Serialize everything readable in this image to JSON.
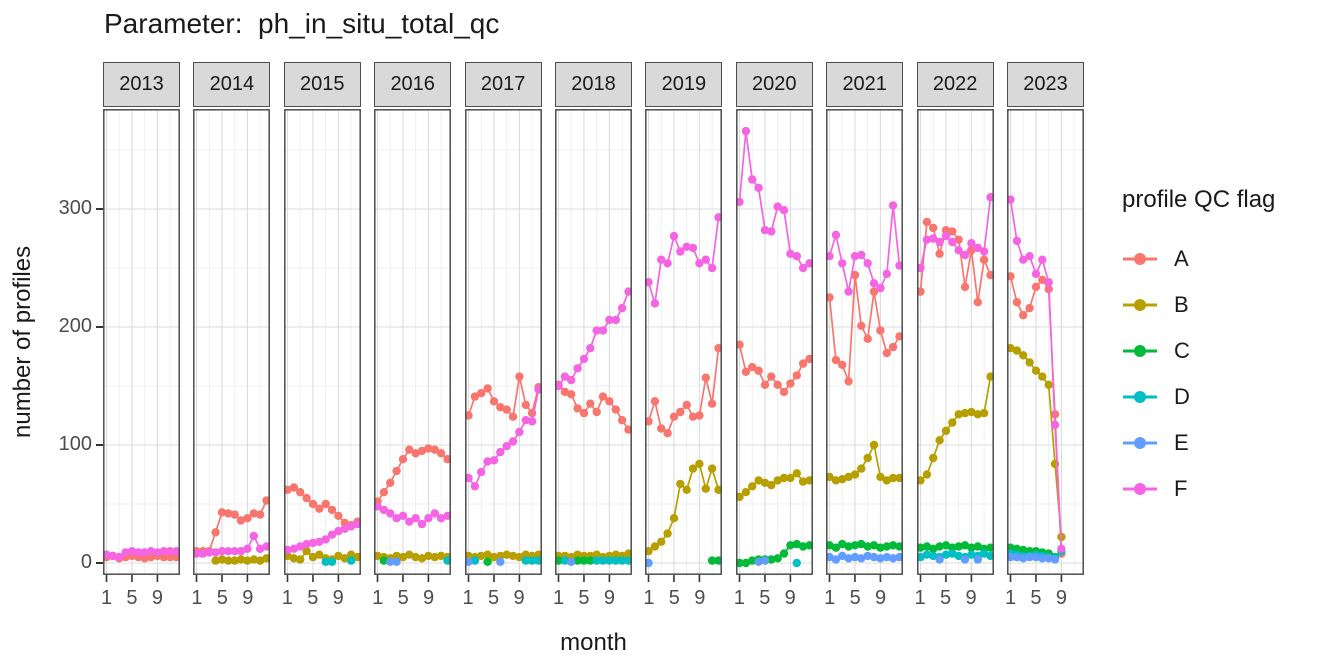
{
  "chart_data": {
    "type": "line",
    "title": "Parameter:  ph_in_situ_total_qc",
    "xlabel": "month",
    "ylabel": "number of profiles",
    "legend_title": "profile QC flag",
    "legend_position": "right",
    "grid": true,
    "x_ticks": [
      1,
      5,
      9
    ],
    "y_ticks": [
      0,
      100,
      200,
      300
    ],
    "y_minor_ticks": [
      50,
      150,
      250,
      350
    ],
    "x_minor_ticks": [
      3,
      7,
      11
    ],
    "ylim": [
      0,
      385
    ],
    "xlim": [
      1,
      12
    ],
    "x": [
      1,
      2,
      3,
      4,
      5,
      6,
      7,
      8,
      9,
      10,
      11,
      12
    ],
    "series_order": [
      "A",
      "B",
      "C",
      "D",
      "E",
      "F"
    ],
    "legend": [
      {
        "label": "A",
        "color": "#F8766D"
      },
      {
        "label": "B",
        "color": "#B79F00"
      },
      {
        "label": "C",
        "color": "#00BA38"
      },
      {
        "label": "D",
        "color": "#00BFC4"
      },
      {
        "label": "E",
        "color": "#619CFF"
      },
      {
        "label": "F",
        "color": "#F564E3"
      }
    ],
    "facets": [
      {
        "year": "2013",
        "series": {
          "A": [
            5,
            6,
            4,
            5,
            6,
            5,
            4,
            5,
            6,
            5,
            5,
            5
          ],
          "F": [
            7,
            6,
            5,
            9,
            10,
            9,
            9,
            10,
            9,
            10,
            10,
            10
          ]
        }
      },
      {
        "year": "2014",
        "series": {
          "A": [
            10,
            10,
            10,
            26,
            43,
            42,
            41,
            36,
            38,
            42,
            41,
            53
          ],
          "B": [
            null,
            null,
            null,
            2,
            3,
            2,
            2,
            3,
            2,
            3,
            2,
            4
          ],
          "F": [
            8,
            8,
            9,
            9,
            10,
            10,
            10,
            10,
            12,
            23,
            12,
            14
          ]
        }
      },
      {
        "year": "2015",
        "series": {
          "A": [
            62,
            64,
            60,
            55,
            50,
            46,
            50,
            45,
            40,
            34,
            32,
            35
          ],
          "B": [
            6,
            4,
            3,
            10,
            5,
            7,
            4,
            3,
            6,
            4,
            7,
            5
          ],
          "D": [
            null,
            null,
            null,
            null,
            null,
            null,
            1,
            1,
            null,
            null,
            2,
            null
          ],
          "F": [
            11,
            12,
            14,
            16,
            17,
            18,
            20,
            24,
            27,
            29,
            31,
            33
          ]
        }
      },
      {
        "year": "2016",
        "series": {
          "A": [
            52,
            60,
            68,
            78,
            88,
            96,
            93,
            95,
            97,
            96,
            93,
            88
          ],
          "B": [
            6,
            5,
            4,
            6,
            5,
            7,
            5,
            4,
            6,
            5,
            6,
            5
          ],
          "C": [
            null,
            2,
            null,
            null,
            null,
            null,
            null,
            null,
            null,
            null,
            null,
            null
          ],
          "D": [
            null,
            null,
            null,
            null,
            null,
            null,
            null,
            null,
            null,
            null,
            null,
            2
          ],
          "E": [
            null,
            null,
            1,
            1,
            null,
            null,
            null,
            null,
            null,
            null,
            null,
            null
          ],
          "F": [
            48,
            45,
            42,
            38,
            40,
            35,
            38,
            33,
            38,
            42,
            38,
            40
          ]
        }
      },
      {
        "year": "2017",
        "series": {
          "A": [
            125,
            141,
            144,
            148,
            137,
            132,
            130,
            124,
            158,
            134,
            127,
            149
          ],
          "B": [
            6,
            5,
            6,
            7,
            5,
            6,
            7,
            6,
            5,
            7,
            6,
            7
          ],
          "C": [
            null,
            null,
            null,
            1,
            null,
            null,
            null,
            null,
            null,
            null,
            null,
            null
          ],
          "D": [
            null,
            2,
            null,
            null,
            null,
            null,
            null,
            null,
            null,
            2,
            2,
            2
          ],
          "E": [
            1,
            null,
            null,
            null,
            null,
            1,
            null,
            null,
            null,
            null,
            null,
            null
          ],
          "F": [
            72,
            65,
            77,
            86,
            87,
            94,
            99,
            103,
            111,
            121,
            120,
            147
          ]
        }
      },
      {
        "year": "2018",
        "series": {
          "A": [
            151,
            145,
            143,
            131,
            127,
            135,
            128,
            141,
            137,
            130,
            121,
            113
          ],
          "B": [
            6,
            6,
            5,
            7,
            6,
            6,
            7,
            5,
            6,
            7,
            6,
            8
          ],
          "C": [
            2,
            null,
            null,
            2,
            2,
            2,
            null,
            null,
            null,
            null,
            null,
            null
          ],
          "D": [
            null,
            2,
            null,
            null,
            null,
            null,
            2,
            2,
            2,
            2,
            2,
            2
          ],
          "E": [
            null,
            null,
            1,
            null,
            null,
            null,
            null,
            null,
            null,
            null,
            null,
            null
          ],
          "F": [
            150,
            158,
            155,
            165,
            173,
            182,
            197,
            197,
            206,
            206,
            216,
            230
          ]
        }
      },
      {
        "year": "2019",
        "series": {
          "A": [
            120,
            137,
            114,
            110,
            124,
            128,
            134,
            124,
            125,
            157,
            135,
            182
          ],
          "B": [
            10,
            14,
            18,
            25,
            38,
            67,
            62,
            80,
            84,
            63,
            80,
            62
          ],
          "C": [
            null,
            null,
            null,
            null,
            null,
            null,
            null,
            null,
            null,
            null,
            2,
            2
          ],
          "E": [
            0,
            null,
            null,
            null,
            null,
            null,
            null,
            null,
            null,
            null,
            null,
            null
          ],
          "F": [
            238,
            220,
            257,
            254,
            277,
            264,
            268,
            267,
            254,
            257,
            250,
            293
          ]
        }
      },
      {
        "year": "2020",
        "series": {
          "A": [
            185,
            162,
            166,
            163,
            151,
            158,
            151,
            145,
            152,
            159,
            169,
            173
          ],
          "B": [
            56,
            60,
            65,
            70,
            68,
            66,
            70,
            72,
            72,
            76,
            69,
            70
          ],
          "C": [
            0,
            0,
            2,
            3,
            3,
            3,
            4,
            8,
            15,
            16,
            14,
            15
          ],
          "D": [
            null,
            null,
            null,
            null,
            null,
            null,
            null,
            null,
            null,
            0,
            null,
            null
          ],
          "E": [
            null,
            null,
            null,
            1,
            2,
            null,
            null,
            null,
            null,
            null,
            null,
            null
          ],
          "F": [
            306,
            366,
            325,
            318,
            282,
            281,
            302,
            299,
            262,
            260,
            250,
            254
          ]
        }
      },
      {
        "year": "2021",
        "series": {
          "A": [
            225,
            172,
            168,
            154,
            244,
            201,
            190,
            230,
            197,
            178,
            183,
            192
          ],
          "B": [
            73,
            70,
            71,
            73,
            75,
            80,
            89,
            100,
            73,
            70,
            72,
            72
          ],
          "C": [
            15,
            13,
            16,
            14,
            15,
            16,
            14,
            15,
            13,
            14,
            15,
            14
          ],
          "E": [
            5,
            3,
            6,
            4,
            5,
            4,
            6,
            5,
            4,
            5,
            4,
            5
          ],
          "F": [
            260,
            278,
            254,
            230,
            260,
            261,
            254,
            237,
            233,
            245,
            303,
            252
          ]
        }
      },
      {
        "year": "2022",
        "series": {
          "A": [
            230,
            289,
            284,
            262,
            282,
            281,
            274,
            234,
            265,
            221,
            257,
            244
          ],
          "B": [
            70,
            75,
            89,
            104,
            112,
            119,
            126,
            127,
            128,
            126,
            127,
            158
          ],
          "C": [
            13,
            14,
            12,
            14,
            15,
            13,
            14,
            15,
            13,
            14,
            12,
            13
          ],
          "D": [
            5,
            7,
            6,
            5,
            7,
            8,
            6,
            5,
            7,
            6,
            8,
            6
          ],
          "E": [
            null,
            null,
            null,
            3,
            null,
            null,
            null,
            3,
            null,
            3,
            null,
            null
          ],
          "F": [
            250,
            274,
            275,
            272,
            277,
            272,
            265,
            261,
            271,
            267,
            264,
            310
          ]
        }
      },
      {
        "year": "2023",
        "series": {
          "A": [
            243,
            221,
            210,
            216,
            234,
            240,
            232,
            126,
            8
          ],
          "B": [
            182,
            180,
            176,
            170,
            163,
            158,
            151,
            84,
            22
          ],
          "C": [
            13,
            12,
            11,
            10,
            10,
            9,
            8,
            5,
            null
          ],
          "D": [
            8,
            7,
            6,
            6,
            7,
            6,
            5,
            4,
            10
          ],
          "E": [
            5,
            5,
            4,
            5,
            5,
            4,
            4,
            3,
            null
          ],
          "F": [
            308,
            273,
            257,
            260,
            245,
            257,
            238,
            117,
            12
          ]
        }
      }
    ]
  }
}
